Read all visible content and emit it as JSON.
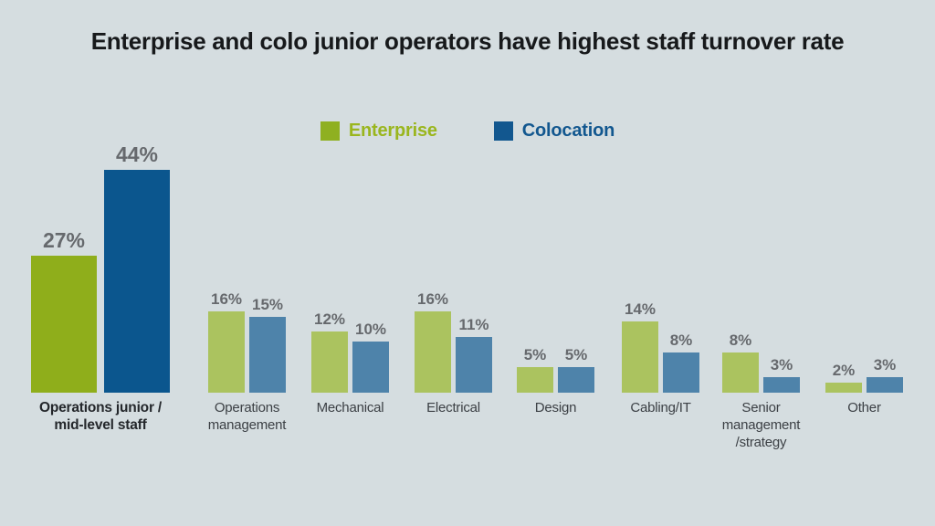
{
  "title": "Enterprise and colo junior operators have highest staff turnover rate",
  "legend": {
    "items": [
      {
        "label": "Enterprise",
        "swatch_color": "#8fb021",
        "label_color": "#9ab61e"
      },
      {
        "label": "Colocation",
        "swatch_color": "#12578f",
        "label_color": "#12578f"
      }
    ]
  },
  "colors": {
    "background": "#d5dde0",
    "title": "#17191b",
    "value_label": "#66696d",
    "category_label": "#3c4045",
    "category_label_highlight": "#24272b",
    "enterprise_highlight": "#8fae1b",
    "colocation_highlight": "#0b568e",
    "enterprise_muted": "#abc35f",
    "colocation_muted": "#4e83aa"
  },
  "chart_data": {
    "type": "bar",
    "title": "Enterprise and colo junior operators have highest staff turnover rate",
    "categories": [
      "Operations junior / mid-level staff",
      "Operations management",
      "Mechanical",
      "Electrical",
      "Design",
      "Cabling/IT",
      "Senior management /strategy",
      "Other"
    ],
    "category_display_lines": [
      [
        "Operations junior /",
        "mid-level staff"
      ],
      [
        "Operations",
        "management"
      ],
      [
        "Mechanical"
      ],
      [
        "Electrical"
      ],
      [
        "Design"
      ],
      [
        "Cabling/IT"
      ],
      [
        "Senior",
        "management",
        "/strategy"
      ],
      [
        "Other"
      ]
    ],
    "series": [
      {
        "name": "Enterprise",
        "values": [
          27,
          16,
          12,
          16,
          5,
          14,
          8,
          2
        ]
      },
      {
        "name": "Colocation",
        "values": [
          44,
          15,
          10,
          11,
          5,
          8,
          3,
          3
        ]
      }
    ],
    "value_suffix": "%",
    "data_labels": true,
    "grid": false,
    "axis_lines": false,
    "ylim": [
      0,
      47
    ],
    "legend_position": "top-center",
    "highlighted_category_index": 0
  }
}
